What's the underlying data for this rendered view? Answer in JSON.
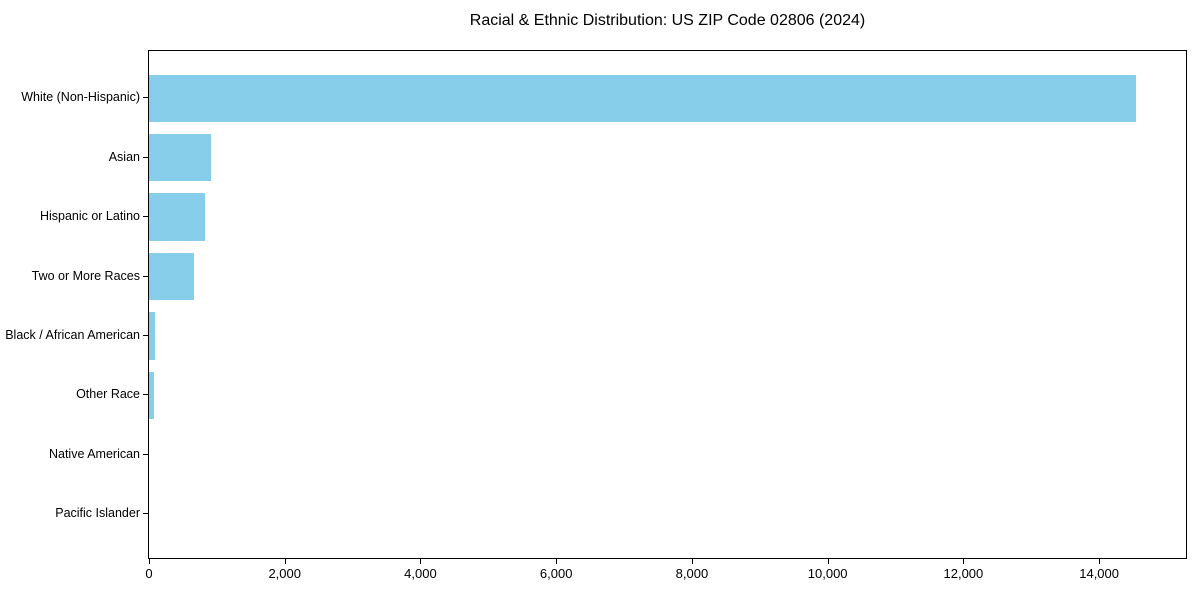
{
  "chart_data": {
    "type": "bar",
    "orientation": "horizontal",
    "title": "Racial & Ethnic Distribution: US ZIP Code 02806 (2024)",
    "categories": [
      "White (Non-Hispanic)",
      "Asian",
      "Hispanic or Latino",
      "Two or More Races",
      "Black / African American",
      "Other Race",
      "Native American",
      "Pacific Islander"
    ],
    "values": [
      14540,
      910,
      820,
      670,
      95,
      80,
      0,
      0
    ],
    "xlabel": "",
    "ylabel": "",
    "xlim": [
      0,
      15280
    ],
    "xticks": [
      0,
      2000,
      4000,
      6000,
      8000,
      10000,
      12000,
      14000
    ],
    "xtick_labels": [
      "0",
      "2,000",
      "4,000",
      "6,000",
      "8,000",
      "10,000",
      "12,000",
      "14,000"
    ],
    "bar_color": "#87CEEB",
    "frame_color": "#000000",
    "grid": false,
    "legend": "none"
  }
}
